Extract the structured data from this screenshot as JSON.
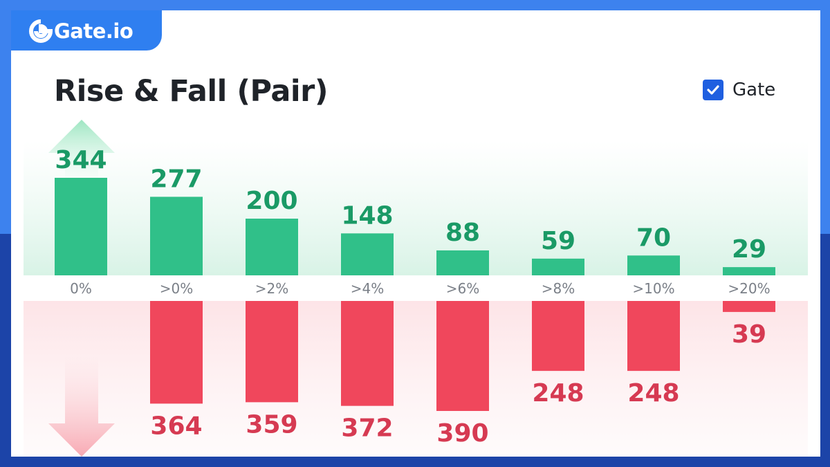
{
  "brand": {
    "name": "Gate.io"
  },
  "legend": {
    "label": "Gate",
    "checked": true
  },
  "colors": {
    "rise": "#30c089",
    "rise_text": "#1a9a66",
    "fall": "#f0475c",
    "fall_text": "#d63a52",
    "axis_text": "#7a7f87"
  },
  "icons": {
    "logo": "gate-logo-icon",
    "check": "checkmark-icon",
    "rise_arrow": "up-arrow-icon",
    "fall_arrow": "down-arrow-icon"
  },
  "chart_data": {
    "type": "bar",
    "title": "Rise & Fall (Pair)",
    "categories": [
      "0%",
      ">0%",
      ">2%",
      ">4%",
      ">6%",
      ">8%",
      ">10%",
      ">20%"
    ],
    "series": [
      {
        "name": "rise",
        "values": [
          344,
          277,
          200,
          148,
          88,
          59,
          70,
          29
        ]
      },
      {
        "name": "fall",
        "values": [
          null,
          364,
          359,
          372,
          390,
          248,
          248,
          39
        ]
      }
    ]
  }
}
